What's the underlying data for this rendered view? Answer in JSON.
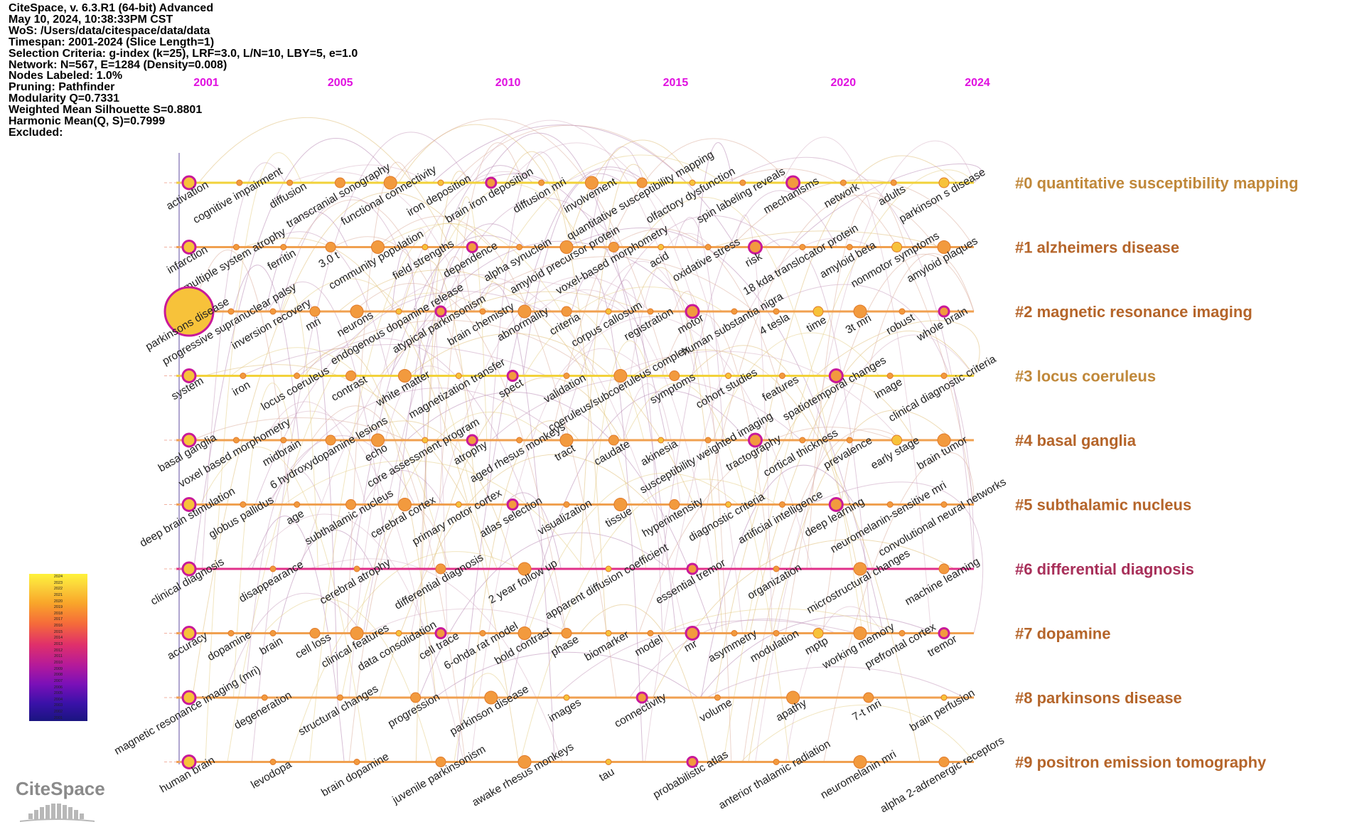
{
  "info": [
    "CiteSpace, v. 6.3.R1 (64-bit) Advanced",
    "May 10, 2024, 10:38:33PM CST",
    "WoS: /Users/data/citespace/data/data",
    "Timespan: 2001-2024 (Slice Length=1)",
    "Selection Criteria: g-index (k=25), LRF=3.0, L/N=10, LBY=5, e=1.0",
    "Network: N=567, E=1284 (Density=0.008)",
    "Nodes Labeled: 1.0%",
    "Pruning: Pathfinder",
    "Modularity Q=0.7331",
    "Weighted Mean Silhouette S=0.8801",
    "Harmonic Mean(Q, S)=0.7999",
    "Excluded:"
  ],
  "years": [
    "2001",
    "2005",
    "2010",
    "2015",
    "2020",
    "2024"
  ],
  "legend_years": [
    "2024",
    "2023",
    "2022",
    "2021",
    "2020",
    "2019",
    "2018",
    "2017",
    "2016",
    "2015",
    "2014",
    "2013",
    "2012",
    "2011",
    "2010",
    "2009",
    "2008",
    "2007",
    "2006",
    "2005",
    "2004",
    "2003",
    "2002",
    "2001"
  ],
  "logo": "CiteSpace",
  "colors": {
    "accent_year": "#e010e0",
    "cluster_label": "#b5652a",
    "cluster_label_alt": "#c0883a",
    "cluster_label_diff": "#a8305a",
    "line_yellow": "#f2d23a",
    "line_orange": "#f0a050",
    "line_magenta": "#e0308a"
  },
  "clusters": [
    {
      "label": "#0 quantitative susceptibility mapping",
      "color_key": "cluster_label_alt",
      "line": "line_yellow",
      "keywords": [
        "activation",
        "cognitive impairment",
        "diffusion",
        "transcranial sonography",
        "functional connectivity",
        "iron deposition",
        "brain iron deposition",
        "diffusion mri",
        "involvement",
        "quantitative susceptibility mapping",
        "olfactory dysfunction",
        "spin labeling reveals",
        "mechanisms",
        "network",
        "adults",
        "parkinson s disease"
      ]
    },
    {
      "label": "#1 alzheimers disease",
      "color_key": "cluster_label",
      "line": "line_orange",
      "keywords": [
        "infarction",
        "multiple system atrophy",
        "ferritin",
        "3.0 t",
        "community population",
        "field strengths",
        "dependence",
        "alpha synuclein",
        "amyloid precursor protein",
        "voxel-based morphometry",
        "acid",
        "oxidative stress",
        "risk",
        "18 kda translocator protein",
        "amyloid beta",
        "nonmotor symptoms",
        "amyloid plaques"
      ]
    },
    {
      "label": "#2 magnetic resonance imaging",
      "color_key": "cluster_label",
      "line": "line_orange",
      "keywords": [
        "parkinsons disease",
        "progressive supranuclear palsy",
        "inversion recovery",
        "mri",
        "neurons",
        "endogenous dopamine release",
        "atypical parkinsonism",
        "brain chemistry",
        "abnormality",
        "criteria",
        "corpus callosum",
        "registration",
        "motor",
        "human substantia nigra",
        "4 tesla",
        "time",
        "3t mri",
        "robust",
        "whole brain"
      ]
    },
    {
      "label": "#3 locus coeruleus",
      "color_key": "cluster_label_alt",
      "line": "line_yellow",
      "keywords": [
        "system",
        "iron",
        "locus coeruleus",
        "contrast",
        "white matter",
        "magnetization transfer",
        "spect",
        "validation",
        "coeruleus/subcoeruleus complex",
        "symptoms",
        "cohort studies",
        "features",
        "spatiotemporal changes",
        "image",
        "clinical diagnostic criteria"
      ]
    },
    {
      "label": "#4 basal ganglia",
      "color_key": "cluster_label",
      "line": "line_orange",
      "keywords": [
        "basal ganglia",
        "voxel based morphometry",
        "midbrain",
        "6 hydroxydopamine lesions",
        "echo",
        "core assessment program",
        "atrophy",
        "aged rhesus monkeys",
        "tract",
        "caudate",
        "akinesia",
        "susceptibility weighted imaging",
        "tractography",
        "cortical thickness",
        "prevalence",
        "early stage",
        "brain tumor"
      ]
    },
    {
      "label": "#5 subthalamic nucleus",
      "color_key": "cluster_label",
      "line": "line_orange",
      "keywords": [
        "deep brain stimulation",
        "globus pallidus",
        "age",
        "subthalamic nucleus",
        "cerebral cortex",
        "primary motor cortex",
        "atlas selection",
        "visualization",
        "tissue",
        "hyperintensity",
        "diagnostic criteria",
        "artificial intelligence",
        "deep learning",
        "neuromelanin-sensitive mri",
        "convolutional neural networks"
      ]
    },
    {
      "label": "#6 differential diagnosis",
      "color_key": "cluster_label_diff",
      "line": "line_magenta",
      "keywords": [
        "clinical diagnosis",
        "disappearance",
        "cerebral atrophy",
        "differential diagnosis",
        "2 year follow up",
        "apparent diffusion coefficient",
        "essential tremor",
        "organization",
        "microstructural changes",
        "machine learning"
      ]
    },
    {
      "label": "#7 dopamine",
      "color_key": "cluster_label",
      "line": "line_orange",
      "keywords": [
        "accuracy",
        "dopamine",
        "brain",
        "cell loss",
        "clinical features",
        "data consolidation",
        "cell trace",
        "6-ohda rat model",
        "bold contrast",
        "phase",
        "biomarker",
        "model",
        "mr",
        "asymmetry",
        "modulation",
        "mptp",
        "working memory",
        "prefrontal cortex",
        "tremor"
      ]
    },
    {
      "label": "#8 parkinsons disease",
      "color_key": "cluster_label",
      "line": "line_orange",
      "keywords": [
        "magnetic resonance imaging (mri)",
        "degeneration",
        "structural changes",
        "progression",
        "parkinson disease",
        "images",
        "connectivity",
        "volume",
        "apathy",
        "7-t mri",
        "brain perfusion"
      ]
    },
    {
      "label": "#9 positron emission tomography",
      "color_key": "cluster_label",
      "line": "line_orange",
      "keywords": [
        "human brain",
        "levodopa",
        "brain dopamine",
        "juvenile parkinsonism",
        "awake rhesus monkeys",
        "tau",
        "probabilistic atlas",
        "anterior thalamic radiation",
        "neuromelanin mri",
        "alpha 2-adrenergic receptors"
      ]
    }
  ]
}
